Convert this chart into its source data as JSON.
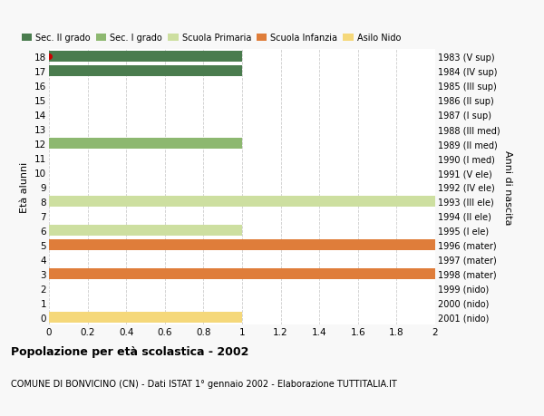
{
  "ages": [
    0,
    1,
    2,
    3,
    4,
    5,
    6,
    7,
    8,
    9,
    10,
    11,
    12,
    13,
    14,
    15,
    16,
    17,
    18
  ],
  "birth_years": [
    "2001 (nido)",
    "2000 (nido)",
    "1999 (nido)",
    "1998 (mater)",
    "1997 (mater)",
    "1996 (mater)",
    "1995 (I ele)",
    "1994 (II ele)",
    "1993 (III ele)",
    "1992 (IV ele)",
    "1991 (V ele)",
    "1990 (I med)",
    "1989 (II med)",
    "1988 (III med)",
    "1987 (I sup)",
    "1986 (II sup)",
    "1985 (III sup)",
    "1984 (IV sup)",
    "1983 (V sup)"
  ],
  "values": [
    1,
    0,
    0,
    2,
    0,
    2,
    1,
    0,
    2,
    0,
    0,
    0,
    1,
    0,
    0,
    0,
    0,
    1,
    1
  ],
  "colors": [
    "#f5d87a",
    "#ffffff",
    "#ffffff",
    "#df7d3a",
    "#ffffff",
    "#df7d3a",
    "#cddfa0",
    "#ffffff",
    "#cddfa0",
    "#ffffff",
    "#ffffff",
    "#ffffff",
    "#8db870",
    "#ffffff",
    "#ffffff",
    "#ffffff",
    "#ffffff",
    "#4a7c4e",
    "#4a7c4e"
  ],
  "legend_labels": [
    "Sec. II grado",
    "Sec. I grado",
    "Scuola Primaria",
    "Scuola Infanzia",
    "Asilo Nido"
  ],
  "legend_colors": [
    "#4a7c4e",
    "#8db870",
    "#cddfa0",
    "#df7d3a",
    "#f5d87a"
  ],
  "title": "Popolazione per età scolastica - 2002",
  "subtitle": "COMUNE DI BONVICINO (CN) - Dati ISTAT 1° gennaio 2002 - Elaborazione TUTTITALIA.IT",
  "ylabel_left": "Età alunni",
  "ylabel_right": "Anni di nascita",
  "xlim": [
    0,
    2.0
  ],
  "xticks": [
    0,
    0.2,
    0.4,
    0.6,
    0.8,
    1.0,
    1.2,
    1.4,
    1.6,
    1.8,
    2.0
  ],
  "bg_color": "#f8f8f8",
  "plot_bg_color": "#ffffff",
  "grid_color": "#cccccc",
  "bar_height": 0.75,
  "marker_age": 18,
  "marker_color": "#cc0000"
}
